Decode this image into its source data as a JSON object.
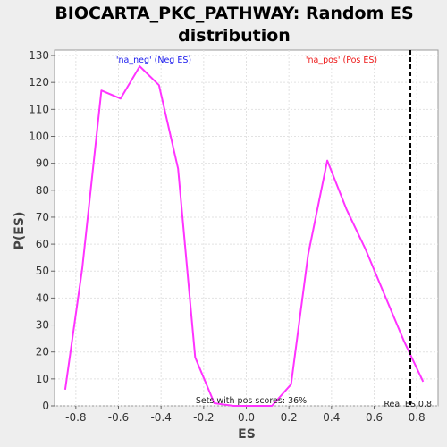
{
  "chart_data": {
    "type": "line",
    "title_line1": "BIOCARTA_PKC_PATHWAY: Random ES",
    "title_line2": "distribution",
    "xlabel": "ES",
    "ylabel": "P(ES)",
    "xlim": [
      -0.9,
      0.9
    ],
    "ylim": [
      0,
      132
    ],
    "xticks": [
      -0.8,
      -0.6,
      -0.4,
      -0.2,
      0.0,
      0.2,
      0.4,
      0.6,
      0.8
    ],
    "xtick_labels": [
      "-0.8",
      "-0.6",
      "-0.4",
      "-0.2",
      "0.0",
      "0.2",
      "0.4",
      "0.6",
      "0.8"
    ],
    "yticks": [
      0,
      10,
      20,
      30,
      40,
      50,
      60,
      70,
      80,
      90,
      100,
      110,
      120,
      130
    ],
    "ytick_labels": [
      "0",
      "10",
      "20",
      "30",
      "40",
      "50",
      "60",
      "70",
      "80",
      "90",
      "100",
      "110",
      "120",
      "130"
    ],
    "grid": true,
    "line_color": "#ff33ff",
    "series": [
      {
        "x": [
          -0.85,
          -0.77,
          -0.68,
          -0.59,
          -0.5,
          -0.41,
          -0.32,
          -0.24,
          -0.15,
          -0.06,
          0.03,
          0.12,
          0.21,
          0.29,
          0.38,
          0.47,
          0.56,
          0.65,
          0.74,
          0.83
        ],
        "y": [
          6,
          51,
          117,
          114,
          126,
          119,
          88,
          18,
          1,
          0,
          0,
          0,
          8,
          56,
          91,
          73,
          58,
          41,
          24,
          9
        ]
      }
    ],
    "real_es": 0.77,
    "real_es_label": "Real ES 0.8",
    "label_neg": "'na_neg' (Neg ES)",
    "label_pos": "'na_pos' (Pos ES)",
    "label_neg_color": "#1a1aee",
    "label_pos_color": "#ee1a1a",
    "pos_scores_text": "Sets with pos scores: 36%"
  }
}
